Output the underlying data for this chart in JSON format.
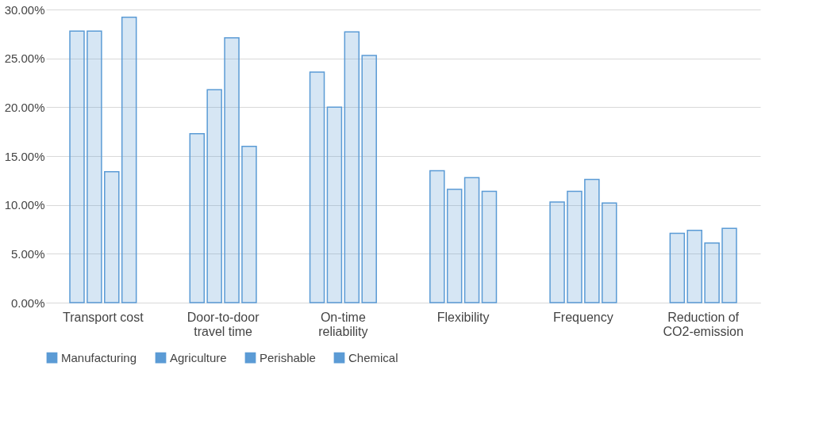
{
  "chart_data": {
    "type": "bar",
    "categories": [
      "Transport cost",
      "Door-to-door travel time",
      "On-time reliability",
      "Flexibility",
      "Frequency",
      "Reduction of CO2-emission"
    ],
    "series": [
      {
        "name": "Manufacturing",
        "color": "#5b9bd5",
        "values": [
          27.8,
          17.3,
          23.6,
          13.5,
          10.3,
          7.1
        ]
      },
      {
        "name": "Agriculture",
        "color": "#5b9bd5",
        "values": [
          27.8,
          21.8,
          20.0,
          11.6,
          11.4,
          7.4
        ]
      },
      {
        "name": "Perishable",
        "color": "#5b9bd5",
        "values": [
          13.4,
          27.1,
          27.7,
          12.8,
          12.6,
          6.1
        ]
      },
      {
        "name": "Chemical",
        "color": "#5b9bd5",
        "values": [
          29.2,
          16.0,
          25.3,
          11.4,
          10.2,
          7.6
        ]
      }
    ],
    "ylim": [
      0,
      30
    ],
    "yticks": [
      {
        "value": 0,
        "label": "0.00%"
      },
      {
        "value": 5,
        "label": "5.00%"
      },
      {
        "value": 10,
        "label": "10.00%"
      },
      {
        "value": 15,
        "label": "15.00%"
      },
      {
        "value": 20,
        "label": "20.00%"
      },
      {
        "value": 25,
        "label": "25.00%"
      },
      {
        "value": 30,
        "label": "30.00%"
      }
    ],
    "grid": "y",
    "legend": "bottom"
  }
}
